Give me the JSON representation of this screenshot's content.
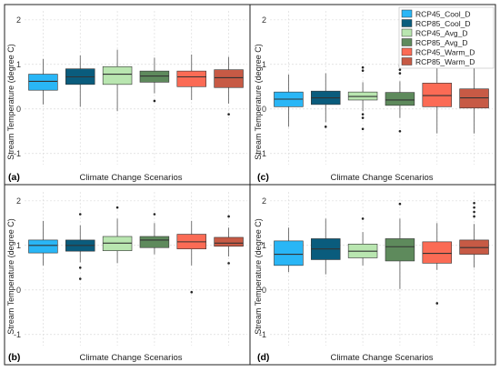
{
  "colors": {
    "RCP45_Cool_D": "#29b6f6",
    "RCP85_Cool_D": "#0a5c7d",
    "RCP45_Avg_D": "#b9e6b0",
    "RCP85_Avg_D": "#5e8a5c",
    "RCP45_Warm_D": "#fb6b55",
    "RCP85_Warm_D": "#c75a45"
  },
  "chart_data": [
    {
      "type": "box",
      "panel_label": "(a)",
      "xlabel": "Climate Change Scenarios",
      "ylabel": "Stream Temperature (degree C)",
      "ylim": [
        -1.25,
        2.2
      ],
      "yticks": [
        "-1",
        "0",
        "1",
        "2"
      ],
      "grid": true,
      "legend": null,
      "series": [
        {
          "name": "RCP45_Cool_D",
          "whisker_low": 0.1,
          "q1": 0.42,
          "median": 0.62,
          "q3": 0.78,
          "whisker_high": 1.12,
          "outliers": []
        },
        {
          "name": "RCP85_Cool_D",
          "whisker_low": 0.05,
          "q1": 0.55,
          "median": 0.72,
          "q3": 0.9,
          "whisker_high": 1.2,
          "outliers": []
        },
        {
          "name": "RCP45_Avg_D",
          "whisker_low": -0.05,
          "q1": 0.55,
          "median": 0.78,
          "q3": 0.95,
          "whisker_high": 1.33,
          "outliers": []
        },
        {
          "name": "RCP85_Avg_D",
          "whisker_low": 0.35,
          "q1": 0.6,
          "median": 0.74,
          "q3": 0.85,
          "whisker_high": 1.15,
          "outliers": [
            0.18
          ]
        },
        {
          "name": "RCP45_Warm_D",
          "whisker_low": 0.2,
          "q1": 0.5,
          "median": 0.72,
          "q3": 0.85,
          "whisker_high": 1.22,
          "outliers": []
        },
        {
          "name": "RCP85_Warm_D",
          "whisker_low": 0.12,
          "q1": 0.48,
          "median": 0.7,
          "q3": 0.88,
          "whisker_high": 1.17,
          "outliers": [
            -0.12
          ]
        }
      ]
    },
    {
      "type": "box",
      "panel_label": "(c)",
      "xlabel": "Climate Change Scenarios",
      "ylabel": "Stream Temperature (degree C)",
      "ylim": [
        -1.25,
        2.2
      ],
      "yticks": [
        "-1",
        "0",
        "1",
        "2"
      ],
      "grid": true,
      "legend": "top-right",
      "series": [
        {
          "name": "RCP45_Cool_D",
          "whisker_low": -0.4,
          "q1": 0.05,
          "median": 0.22,
          "q3": 0.38,
          "whisker_high": 0.77,
          "outliers": []
        },
        {
          "name": "RCP85_Cool_D",
          "whisker_low": -0.3,
          "q1": 0.1,
          "median": 0.25,
          "q3": 0.4,
          "whisker_high": 0.8,
          "outliers": [
            -0.4
          ]
        },
        {
          "name": "RCP45_Avg_D",
          "whisker_low": -0.05,
          "q1": 0.2,
          "median": 0.28,
          "q3": 0.38,
          "whisker_high": 0.6,
          "outliers": [
            0.93,
            0.86,
            -0.12,
            -0.2,
            -0.45
          ]
        },
        {
          "name": "RCP85_Avg_D",
          "whisker_low": -0.2,
          "q1": 0.08,
          "median": 0.2,
          "q3": 0.37,
          "whisker_high": 0.62,
          "outliers": [
            0.97,
            0.88,
            0.8,
            -0.5
          ]
        },
        {
          "name": "RCP45_Warm_D",
          "whisker_low": -0.55,
          "q1": 0.05,
          "median": 0.3,
          "q3": 0.58,
          "whisker_high": 1.35,
          "outliers": []
        },
        {
          "name": "RCP85_Warm_D",
          "whisker_low": -0.55,
          "q1": 0.02,
          "median": 0.25,
          "q3": 0.45,
          "whisker_high": 1.2,
          "outliers": []
        }
      ]
    },
    {
      "type": "box",
      "panel_label": "(b)",
      "xlabel": "Climate Change Scenarios",
      "ylabel": "Stream Temperature (degree C)",
      "ylim": [
        -1.25,
        2.2
      ],
      "yticks": [
        "-1",
        "0",
        "1",
        "2"
      ],
      "grid": true,
      "legend": null,
      "series": [
        {
          "name": "RCP45_Cool_D",
          "whisker_low": 0.55,
          "q1": 0.83,
          "median": 1.0,
          "q3": 1.12,
          "whisker_high": 1.55,
          "outliers": []
        },
        {
          "name": "RCP85_Cool_D",
          "whisker_low": 0.62,
          "q1": 0.87,
          "median": 1.0,
          "q3": 1.12,
          "whisker_high": 1.45,
          "outliers": [
            1.7,
            0.5,
            0.25
          ]
        },
        {
          "name": "RCP45_Avg_D",
          "whisker_low": 0.6,
          "q1": 0.88,
          "median": 1.05,
          "q3": 1.2,
          "whisker_high": 1.6,
          "outliers": [
            1.85
          ]
        },
        {
          "name": "RCP85_Avg_D",
          "whisker_low": 0.8,
          "q1": 0.95,
          "median": 1.12,
          "q3": 1.2,
          "whisker_high": 1.5,
          "outliers": [
            1.7
          ]
        },
        {
          "name": "RCP45_Warm_D",
          "whisker_low": 0.55,
          "q1": 0.92,
          "median": 1.08,
          "q3": 1.25,
          "whisker_high": 1.55,
          "outliers": [
            -0.05
          ]
        },
        {
          "name": "RCP85_Warm_D",
          "whisker_low": 0.75,
          "q1": 0.98,
          "median": 1.05,
          "q3": 1.18,
          "whisker_high": 1.4,
          "outliers": [
            1.65,
            0.6
          ]
        }
      ]
    },
    {
      "type": "box",
      "panel_label": "(d)",
      "xlabel": "Climate Change Scenarios",
      "ylabel": "Stream Temperature (degree C)",
      "ylim": [
        -1.25,
        2.2
      ],
      "yticks": [
        "-1",
        "0",
        "1",
        "2"
      ],
      "grid": true,
      "legend": null,
      "series": [
        {
          "name": "RCP45_Cool_D",
          "whisker_low": 0.4,
          "q1": 0.55,
          "median": 0.8,
          "q3": 1.1,
          "whisker_high": 1.4,
          "outliers": []
        },
        {
          "name": "RCP85_Cool_D",
          "whisker_low": 0.35,
          "q1": 0.68,
          "median": 0.92,
          "q3": 1.15,
          "whisker_high": 1.6,
          "outliers": []
        },
        {
          "name": "RCP45_Avg_D",
          "whisker_low": 0.55,
          "q1": 0.72,
          "median": 0.87,
          "q3": 1.03,
          "whisker_high": 1.3,
          "outliers": [
            1.6
          ]
        },
        {
          "name": "RCP85_Avg_D",
          "whisker_low": 0.02,
          "q1": 0.65,
          "median": 0.97,
          "q3": 1.15,
          "whisker_high": 1.6,
          "outliers": [
            1.93
          ]
        },
        {
          "name": "RCP45_Warm_D",
          "whisker_low": 0.45,
          "q1": 0.6,
          "median": 0.82,
          "q3": 1.08,
          "whisker_high": 1.5,
          "outliers": [
            -0.3
          ]
        },
        {
          "name": "RCP85_Warm_D",
          "whisker_low": 0.5,
          "q1": 0.8,
          "median": 0.95,
          "q3": 1.12,
          "whisker_high": 1.48,
          "outliers": [
            1.95,
            1.85,
            1.75,
            1.65
          ]
        }
      ]
    }
  ]
}
